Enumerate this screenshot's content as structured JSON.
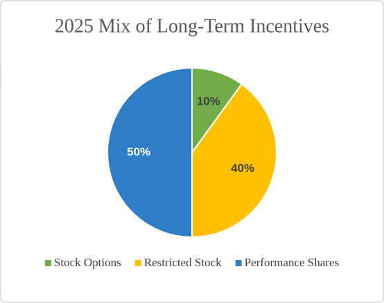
{
  "chart_data": {
    "type": "pie",
    "title": "2025 Mix of Long-Term Incentives",
    "categories": [
      "Stock Options",
      "Restricted Stock",
      "Performance Shares"
    ],
    "values": [
      10,
      40,
      50
    ],
    "value_labels": [
      "10%",
      "40%",
      "50%"
    ],
    "colors": [
      "#70ad47",
      "#ffc000",
      "#2e7dc6"
    ],
    "label_colors": [
      "#404040",
      "#404040",
      "#ffffff"
    ],
    "legend": "bottom"
  }
}
